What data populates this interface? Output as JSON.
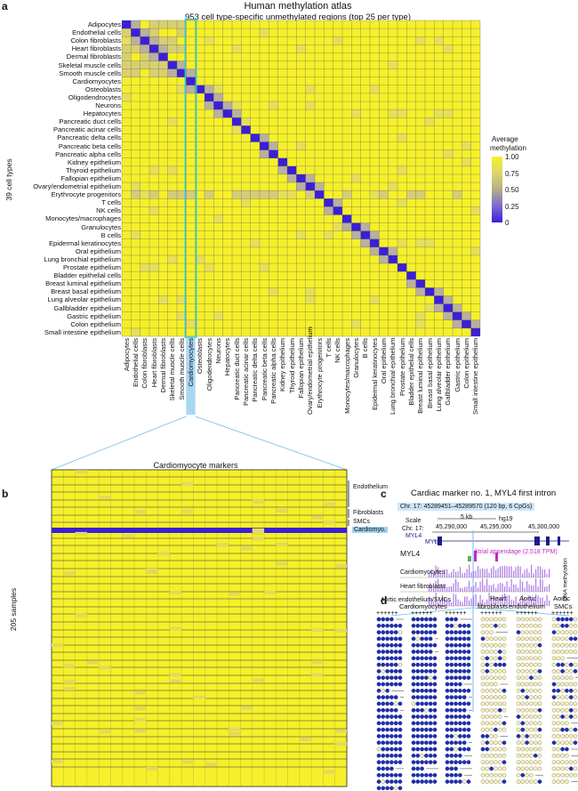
{
  "panels": {
    "a": "a",
    "b": "b",
    "c": "c",
    "d": "d"
  },
  "atlas": {
    "title": "Human methylation atlas",
    "subtitle": "953 cell type-specific unmethylated regions (top 25 per type)",
    "ylabel": "39 cell types",
    "cell_types": [
      "Adipocytes",
      "Endothelial cells",
      "Colon fibroblasts",
      "Heart fibroblasts",
      "Dermal fibroblasts",
      "Skeletal muscle cells",
      "Smooth muscle cells",
      "Cardiomyocytes",
      "Osteoblasts",
      "Oligodendrocytes",
      "Neurons",
      "Hepatocytes",
      "Pancreatic duct cells",
      "Pancreatic acinar cells",
      "Pancreatic delta cells",
      "Pancreatic beta cells",
      "Pancreatic alpha cells",
      "Kidney epithelium",
      "Thyroid epithelium",
      "Fallopian epithelium",
      "Ovary/endometrial epithelium",
      "Erythrocyte progenitors",
      "T cells",
      "NK cells",
      "Monocytes/macrophages",
      "Granulocytes",
      "B cells",
      "Epidermal keratinocytes",
      "Oral epithelium",
      "Lung bronchial epithelium",
      "Prostate epithelium",
      "Bladder epithelial cells",
      "Breast luminal epithelium",
      "Breast basal epithelium",
      "Lung alveolar epithelium",
      "Gallbladder epithelium",
      "Gastric epithelium",
      "Colon epithelium",
      "Small intestine epithelium"
    ],
    "highlight_column": "Cardiomyocytes"
  },
  "colorbar": {
    "title_line1": "Average",
    "title_line2": "methylation",
    "ticks": [
      "1.00",
      "0.75",
      "0.50",
      "0.25",
      "0"
    ],
    "colors": {
      "high": "#f5f02a",
      "mid": "#c8c27a",
      "low": "#3a1fd6",
      "highlight": "#35c7d6"
    }
  },
  "panel_b": {
    "title": "Cardiomyocyte markers",
    "ylabel": "205 samples",
    "groups": [
      "Endothelium",
      "Fibroblasts",
      "SMCs",
      "Cardiomyo."
    ]
  },
  "panel_c": {
    "title": "Cardiac marker no. 1, MYL4 first intron",
    "coords": "Chr. 17: 45289451–45289570 (120 bp, 6 CpGs)",
    "scale_label": "Scale",
    "scale_value": "5 kb",
    "genome": "hg19",
    "chr_label": "Chr. 17:",
    "positions": [
      "45,290,000",
      "45,295,000",
      "45,300,000"
    ],
    "gene_track": "MYL4",
    "gene_name": "MYL4",
    "expression": "Atrial appendage (2,518 TPM)",
    "tracks": [
      "Cardiomyocytes",
      "Heart fibroblasts",
      "Aortic endothelium/SMCs"
    ],
    "side_label": "DNA methylation"
  },
  "panel_d": {
    "groups": [
      "Cardiomyocytes",
      "Heart fibroblasts",
      "Aortic endothelium",
      "Aortic SMCs"
    ],
    "group_lines": [
      [
        "Cardiomyocytes"
      ],
      [
        "Heart",
        "fibroblasts"
      ],
      [
        "Aortic",
        "endothelium"
      ],
      [
        "Aortic",
        "SMCs"
      ]
    ],
    "cpg_header": "++++++"
  }
}
